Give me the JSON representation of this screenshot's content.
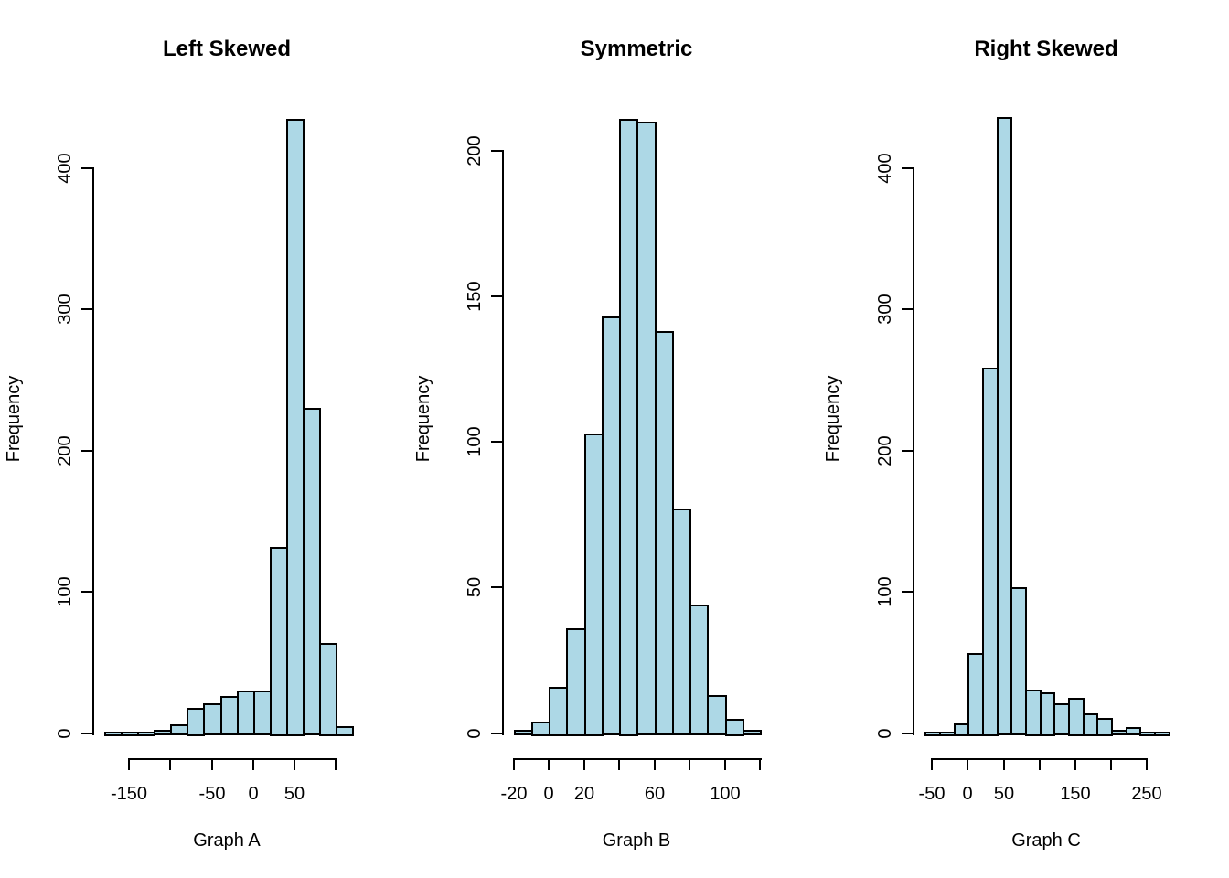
{
  "figure": {
    "background": "#ffffff",
    "bar_fill": "#ADD8E6",
    "bar_border": "#000000",
    "axis_color": "#000000",
    "text_color": "#000000"
  },
  "chart_data": [
    {
      "type": "bar",
      "subtype": "histogram",
      "title": "Left Skewed",
      "xlabel": "Graph A",
      "ylabel": "Frequency",
      "grid": false,
      "bin_start": -180,
      "bin_width": 20,
      "counts": [
        1,
        1,
        1,
        2,
        6,
        18,
        21,
        26,
        30,
        30,
        132,
        435,
        230,
        64,
        5
      ],
      "x_ticks": [
        {
          "value": -150,
          "label": "-150"
        },
        {
          "value": -100,
          "label": ""
        },
        {
          "value": -50,
          "label": "-50"
        },
        {
          "value": 0,
          "label": "0"
        },
        {
          "value": 50,
          "label": "50"
        },
        {
          "value": 100,
          "label": ""
        }
      ],
      "y_ticks": [
        {
          "value": 0,
          "label": "0"
        },
        {
          "value": 100,
          "label": "100"
        },
        {
          "value": 200,
          "label": "200"
        },
        {
          "value": 300,
          "label": "300"
        },
        {
          "value": 400,
          "label": "400"
        }
      ]
    },
    {
      "type": "bar",
      "subtype": "histogram",
      "title": "Symmetric",
      "xlabel": "Graph B",
      "ylabel": "Frequency",
      "grid": false,
      "bin_start": -20,
      "bin_width": 10,
      "counts": [
        1,
        4,
        16,
        36,
        103,
        143,
        211,
        210,
        138,
        77,
        44,
        13,
        5,
        1
      ],
      "x_ticks": [
        {
          "value": -20,
          "label": "-20"
        },
        {
          "value": 0,
          "label": "0"
        },
        {
          "value": 20,
          "label": "20"
        },
        {
          "value": 40,
          "label": ""
        },
        {
          "value": 60,
          "label": "60"
        },
        {
          "value": 80,
          "label": ""
        },
        {
          "value": 100,
          "label": "100"
        },
        {
          "value": 120,
          "label": ""
        }
      ],
      "y_ticks": [
        {
          "value": 0,
          "label": "0"
        },
        {
          "value": 50,
          "label": "50"
        },
        {
          "value": 100,
          "label": "100"
        },
        {
          "value": 150,
          "label": "150"
        },
        {
          "value": 200,
          "label": "200"
        }
      ]
    },
    {
      "type": "bar",
      "subtype": "histogram",
      "title": "Right Skewed",
      "xlabel": "Graph C",
      "ylabel": "Frequency",
      "grid": false,
      "bin_start": -60,
      "bin_width": 20,
      "counts": [
        1,
        1,
        7,
        57,
        259,
        436,
        103,
        31,
        29,
        21,
        25,
        14,
        11,
        2,
        4,
        1,
        1
      ],
      "x_ticks": [
        {
          "value": -50,
          "label": "-50"
        },
        {
          "value": 0,
          "label": "0"
        },
        {
          "value": 50,
          "label": "50"
        },
        {
          "value": 100,
          "label": ""
        },
        {
          "value": 150,
          "label": "150"
        },
        {
          "value": 200,
          "label": ""
        },
        {
          "value": 250,
          "label": "250"
        }
      ],
      "y_ticks": [
        {
          "value": 0,
          "label": "0"
        },
        {
          "value": 100,
          "label": "100"
        },
        {
          "value": 200,
          "label": "200"
        },
        {
          "value": 300,
          "label": "300"
        },
        {
          "value": 400,
          "label": "400"
        }
      ]
    }
  ]
}
